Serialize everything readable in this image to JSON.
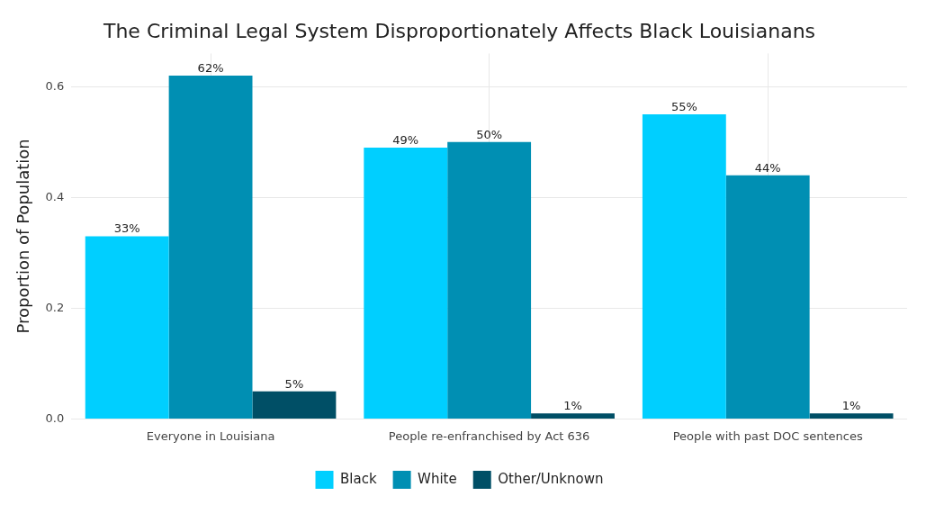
{
  "chart_data": {
    "type": "bar",
    "title": "The Criminal Legal System Disproportionately Affects Black Louisianans",
    "ylabel": "Proportion of Population",
    "categories": [
      "Everyone in Louisiana",
      "People re-enfranchised by Act 636",
      "People with past DOC sentences"
    ],
    "series": [
      {
        "name": "Black",
        "color": "#00cfff",
        "values": [
          0.33,
          0.49,
          0.55
        ],
        "value_labels": [
          "33%",
          "49%",
          "55%"
        ]
      },
      {
        "name": "White",
        "color": "#008fb3",
        "values": [
          0.62,
          0.5,
          0.44
        ],
        "value_labels": [
          "62%",
          "50%",
          "44%"
        ]
      },
      {
        "name": "Other/Unknown",
        "color": "#004f66",
        "values": [
          0.05,
          0.01,
          0.01
        ],
        "value_labels": [
          "5%",
          "1%",
          "1%"
        ]
      }
    ],
    "ylim": [
      0,
      0.66
    ],
    "yticks": [
      {
        "value": 0,
        "label": "0.0"
      },
      {
        "value": 0.2,
        "label": "0.2"
      },
      {
        "value": 0.4,
        "label": "0.4"
      },
      {
        "value": 0.6,
        "label": "0.6"
      }
    ],
    "grid": true,
    "legend": "bottom"
  }
}
